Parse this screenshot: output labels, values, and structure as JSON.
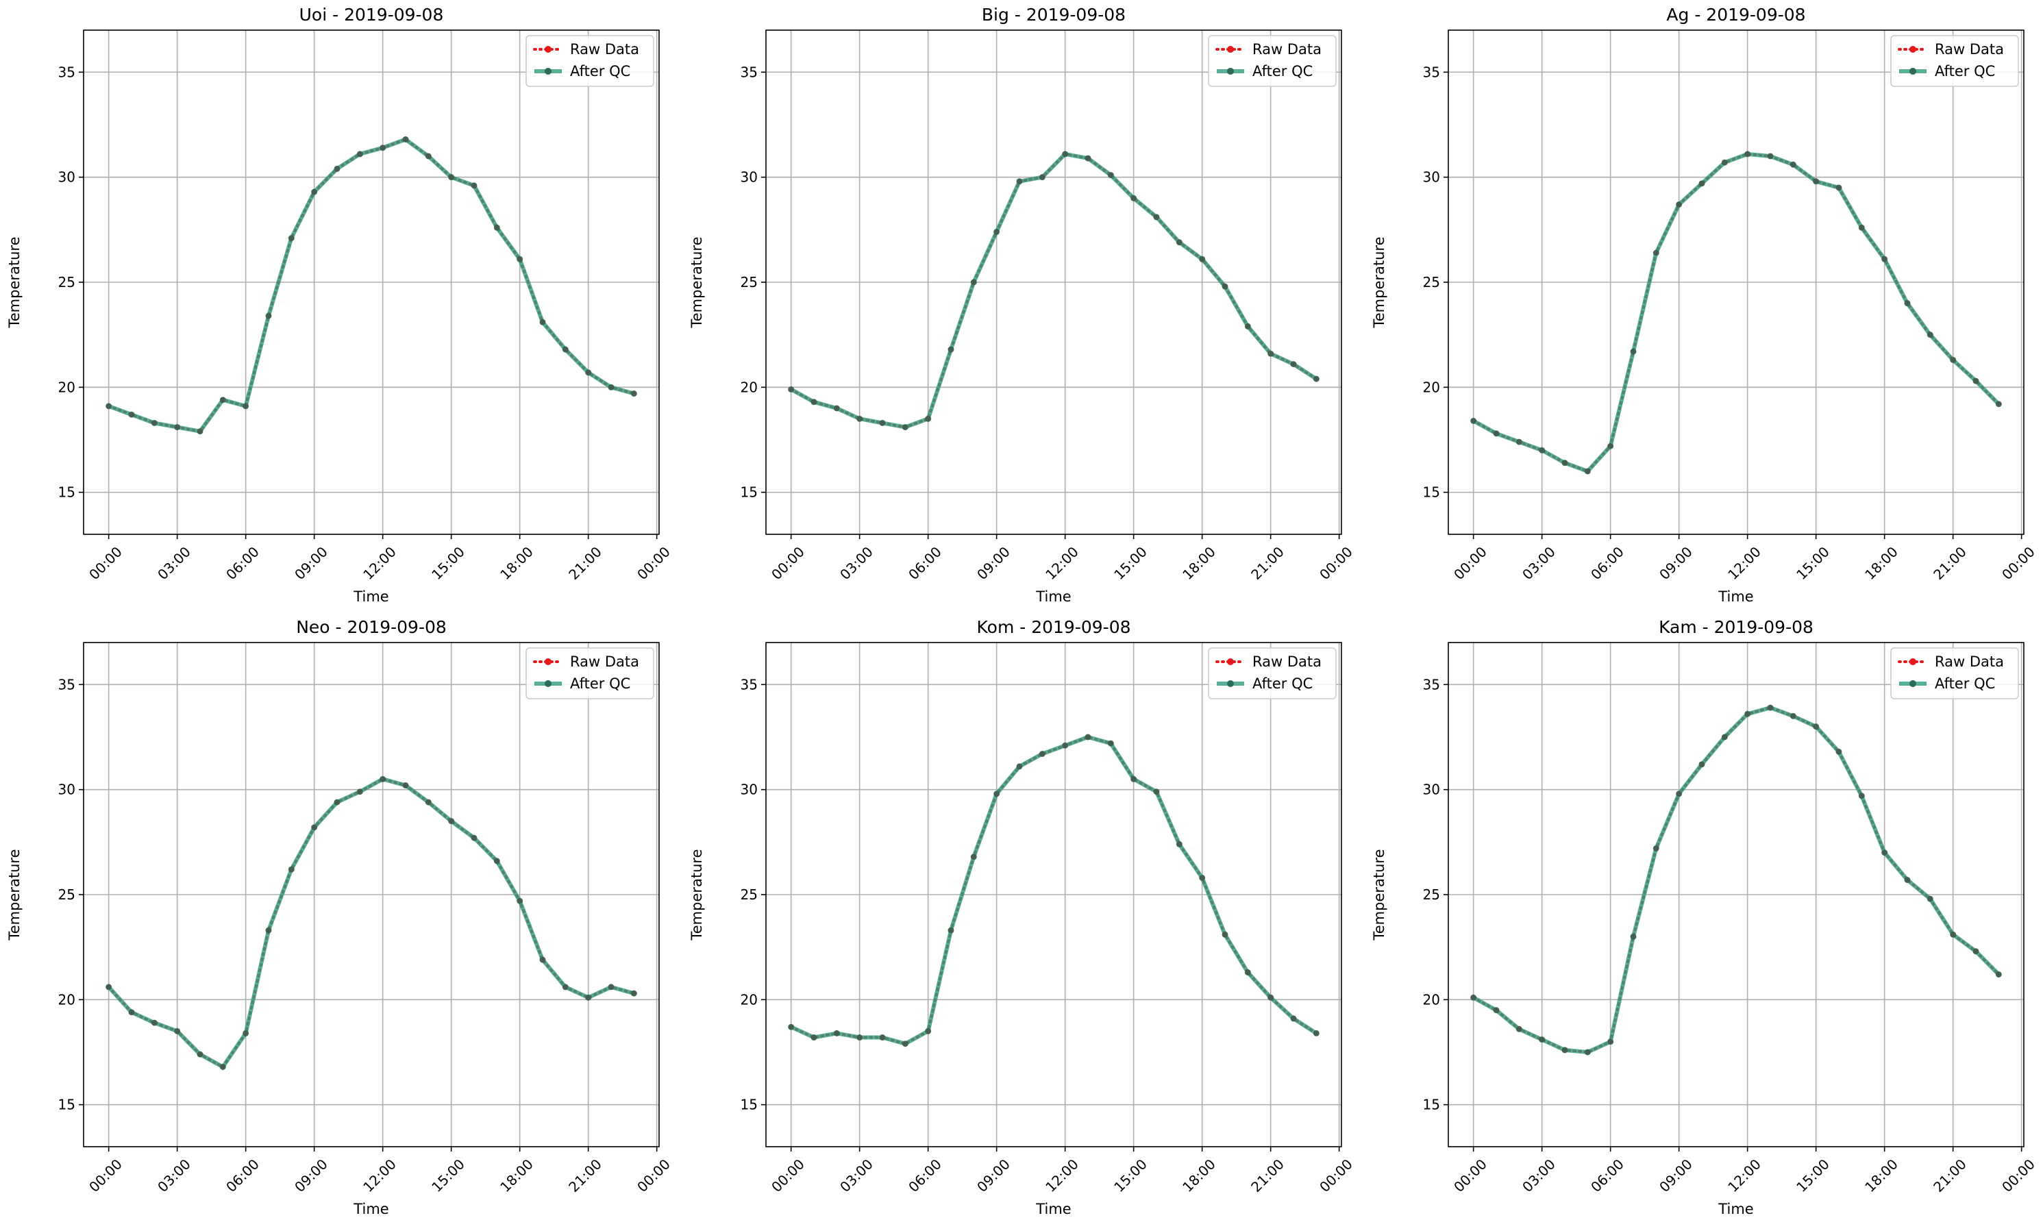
{
  "chart_data": [
    {
      "type": "line",
      "title": "Uoi - 2019-09-08",
      "xlabel": "Time",
      "ylabel": "Temperature",
      "xlim": [
        -1.1,
        24.1
      ],
      "ylim": [
        13,
        37
      ],
      "x_ticks": [
        0,
        3,
        6,
        9,
        12,
        15,
        18,
        21,
        24
      ],
      "x_tick_labels": [
        "00:00",
        "03:00",
        "06:00",
        "09:00",
        "12:00",
        "15:00",
        "18:00",
        "21:00",
        "00:00"
      ],
      "y_ticks": [
        15,
        20,
        25,
        30,
        35
      ],
      "grid": true,
      "legend_position": "top-right",
      "x": [
        0,
        1,
        2,
        3,
        4,
        5,
        6,
        7,
        8,
        9,
        10,
        11,
        12,
        13,
        14,
        15,
        16,
        17,
        18,
        19,
        20,
        21,
        22,
        23
      ],
      "series": [
        {
          "name": "Raw Data",
          "color": "#e41a1c",
          "style": "dotted",
          "values": [
            19.1,
            18.7,
            18.3,
            18.1,
            17.9,
            19.4,
            19.1,
            23.4,
            27.1,
            29.3,
            30.4,
            31.1,
            31.4,
            31.8,
            31.0,
            30.0,
            29.6,
            27.6,
            26.1,
            23.1,
            21.8,
            20.7,
            20.0,
            19.7
          ]
        },
        {
          "name": "After QC",
          "color": "#2e9e7e",
          "style": "solid",
          "values": [
            19.1,
            18.7,
            18.3,
            18.1,
            17.9,
            19.4,
            19.1,
            23.4,
            27.1,
            29.3,
            30.4,
            31.1,
            31.4,
            31.8,
            31.0,
            30.0,
            29.6,
            27.6,
            26.1,
            23.1,
            21.8,
            20.7,
            20.0,
            19.7
          ]
        }
      ]
    },
    {
      "type": "line",
      "title": "Big - 2019-09-08",
      "xlabel": "Time",
      "ylabel": "Temperature",
      "xlim": [
        -1.1,
        24.1
      ],
      "ylim": [
        13,
        37
      ],
      "x_ticks": [
        0,
        3,
        6,
        9,
        12,
        15,
        18,
        21,
        24
      ],
      "x_tick_labels": [
        "00:00",
        "03:00",
        "06:00",
        "09:00",
        "12:00",
        "15:00",
        "18:00",
        "21:00",
        "00:00"
      ],
      "y_ticks": [
        15,
        20,
        25,
        30,
        35
      ],
      "grid": true,
      "legend_position": "top-right",
      "x": [
        0,
        1,
        2,
        3,
        4,
        5,
        6,
        7,
        8,
        9,
        10,
        11,
        12,
        13,
        14,
        15,
        16,
        17,
        18,
        19,
        20,
        21,
        22,
        23
      ],
      "series": [
        {
          "name": "Raw Data",
          "color": "#e41a1c",
          "style": "dotted",
          "values": [
            19.9,
            19.3,
            19.0,
            18.5,
            18.3,
            18.1,
            18.5,
            21.8,
            25.0,
            27.4,
            29.8,
            30.0,
            31.1,
            30.9,
            30.1,
            29.0,
            28.1,
            26.9,
            26.1,
            24.8,
            22.9,
            21.6,
            21.1,
            20.4
          ]
        },
        {
          "name": "After QC",
          "color": "#2e9e7e",
          "style": "solid",
          "values": [
            19.9,
            19.3,
            19.0,
            18.5,
            18.3,
            18.1,
            18.5,
            21.8,
            25.0,
            27.4,
            29.8,
            30.0,
            31.1,
            30.9,
            30.1,
            29.0,
            28.1,
            26.9,
            26.1,
            24.8,
            22.9,
            21.6,
            21.1,
            20.4
          ]
        }
      ]
    },
    {
      "type": "line",
      "title": "Ag - 2019-09-08",
      "xlabel": "Time",
      "ylabel": "Temperature",
      "xlim": [
        -1.1,
        24.1
      ],
      "ylim": [
        13,
        37
      ],
      "x_ticks": [
        0,
        3,
        6,
        9,
        12,
        15,
        18,
        21,
        24
      ],
      "x_tick_labels": [
        "00:00",
        "03:00",
        "06:00",
        "09:00",
        "12:00",
        "15:00",
        "18:00",
        "21:00",
        "00:00"
      ],
      "y_ticks": [
        15,
        20,
        25,
        30,
        35
      ],
      "grid": true,
      "legend_position": "top-right",
      "x": [
        0,
        1,
        2,
        3,
        4,
        5,
        6,
        7,
        8,
        9,
        10,
        11,
        12,
        13,
        14,
        15,
        16,
        17,
        18,
        19,
        20,
        21,
        22,
        23
      ],
      "series": [
        {
          "name": "Raw Data",
          "color": "#e41a1c",
          "style": "dotted",
          "values": [
            18.4,
            17.8,
            17.4,
            17.0,
            16.4,
            16.0,
            17.2,
            21.7,
            26.4,
            28.7,
            29.7,
            30.7,
            31.1,
            31.0,
            30.6,
            29.8,
            29.5,
            27.6,
            26.1,
            24.0,
            22.5,
            21.3,
            20.3,
            19.2
          ]
        },
        {
          "name": "After QC",
          "color": "#2e9e7e",
          "style": "solid",
          "values": [
            18.4,
            17.8,
            17.4,
            17.0,
            16.4,
            16.0,
            17.2,
            21.7,
            26.4,
            28.7,
            29.7,
            30.7,
            31.1,
            31.0,
            30.6,
            29.8,
            29.5,
            27.6,
            26.1,
            24.0,
            22.5,
            21.3,
            20.3,
            19.2
          ]
        }
      ]
    },
    {
      "type": "line",
      "title": "Neo - 2019-09-08",
      "xlabel": "Time",
      "ylabel": "Temperature",
      "xlim": [
        -1.1,
        24.1
      ],
      "ylim": [
        13,
        37
      ],
      "x_ticks": [
        0,
        3,
        6,
        9,
        12,
        15,
        18,
        21,
        24
      ],
      "x_tick_labels": [
        "00:00",
        "03:00",
        "06:00",
        "09:00",
        "12:00",
        "15:00",
        "18:00",
        "21:00",
        "00:00"
      ],
      "y_ticks": [
        15,
        20,
        25,
        30,
        35
      ],
      "grid": true,
      "legend_position": "top-right",
      "x": [
        0,
        1,
        2,
        3,
        4,
        5,
        6,
        7,
        8,
        9,
        10,
        11,
        12,
        13,
        14,
        15,
        16,
        17,
        18,
        19,
        20,
        21,
        22,
        23
      ],
      "series": [
        {
          "name": "Raw Data",
          "color": "#e41a1c",
          "style": "dotted",
          "values": [
            20.6,
            19.4,
            18.9,
            18.5,
            17.4,
            16.8,
            18.4,
            23.3,
            26.2,
            28.2,
            29.4,
            29.9,
            30.5,
            30.2,
            29.4,
            28.5,
            27.7,
            26.6,
            24.7,
            21.9,
            20.6,
            20.1,
            20.6,
            20.3
          ]
        },
        {
          "name": "After QC",
          "color": "#2e9e7e",
          "style": "solid",
          "values": [
            20.6,
            19.4,
            18.9,
            18.5,
            17.4,
            16.8,
            18.4,
            23.3,
            26.2,
            28.2,
            29.4,
            29.9,
            30.5,
            30.2,
            29.4,
            28.5,
            27.7,
            26.6,
            24.7,
            21.9,
            20.6,
            20.1,
            20.6,
            20.3
          ]
        }
      ]
    },
    {
      "type": "line",
      "title": "Kom - 2019-09-08",
      "xlabel": "Time",
      "ylabel": "Temperature",
      "xlim": [
        -1.1,
        24.1
      ],
      "ylim": [
        13,
        37
      ],
      "x_ticks": [
        0,
        3,
        6,
        9,
        12,
        15,
        18,
        21,
        24
      ],
      "x_tick_labels": [
        "00:00",
        "03:00",
        "06:00",
        "09:00",
        "12:00",
        "15:00",
        "18:00",
        "21:00",
        "00:00"
      ],
      "y_ticks": [
        15,
        20,
        25,
        30,
        35
      ],
      "grid": true,
      "legend_position": "top-right",
      "x": [
        0,
        1,
        2,
        3,
        4,
        5,
        6,
        7,
        8,
        9,
        10,
        11,
        12,
        13,
        14,
        15,
        16,
        17,
        18,
        19,
        20,
        21,
        22,
        23
      ],
      "series": [
        {
          "name": "Raw Data",
          "color": "#e41a1c",
          "style": "dotted",
          "values": [
            18.7,
            18.2,
            18.4,
            18.2,
            18.2,
            17.9,
            18.5,
            23.3,
            26.8,
            29.8,
            31.1,
            31.7,
            32.1,
            32.5,
            32.2,
            30.5,
            29.9,
            27.4,
            25.8,
            23.1,
            21.3,
            20.1,
            19.1,
            18.4
          ]
        },
        {
          "name": "After QC",
          "color": "#2e9e7e",
          "style": "solid",
          "values": [
            18.7,
            18.2,
            18.4,
            18.2,
            18.2,
            17.9,
            18.5,
            23.3,
            26.8,
            29.8,
            31.1,
            31.7,
            32.1,
            32.5,
            32.2,
            30.5,
            29.9,
            27.4,
            25.8,
            23.1,
            21.3,
            20.1,
            19.1,
            18.4
          ]
        }
      ]
    },
    {
      "type": "line",
      "title": "Kam - 2019-09-08",
      "xlabel": "Time",
      "ylabel": "Temperature",
      "xlim": [
        -1.1,
        24.1
      ],
      "ylim": [
        13,
        37
      ],
      "x_ticks": [
        0,
        3,
        6,
        9,
        12,
        15,
        18,
        21,
        24
      ],
      "x_tick_labels": [
        "00:00",
        "03:00",
        "06:00",
        "09:00",
        "12:00",
        "15:00",
        "18:00",
        "21:00",
        "00:00"
      ],
      "y_ticks": [
        15,
        20,
        25,
        30,
        35
      ],
      "grid": true,
      "legend_position": "top-right",
      "x": [
        0,
        1,
        2,
        3,
        4,
        5,
        6,
        7,
        8,
        9,
        10,
        11,
        12,
        13,
        14,
        15,
        16,
        17,
        18,
        19,
        20,
        21,
        22,
        23
      ],
      "series": [
        {
          "name": "Raw Data",
          "color": "#e41a1c",
          "style": "dotted",
          "values": [
            20.1,
            19.5,
            18.6,
            18.1,
            17.6,
            17.5,
            18.0,
            23.0,
            27.2,
            29.8,
            31.2,
            32.5,
            33.6,
            33.9,
            33.5,
            33.0,
            31.8,
            29.7,
            27.0,
            25.7,
            24.8,
            23.1,
            22.3,
            21.2
          ]
        },
        {
          "name": "After QC",
          "color": "#2e9e7e",
          "style": "solid",
          "values": [
            20.1,
            19.5,
            18.6,
            18.1,
            17.6,
            17.5,
            18.0,
            23.0,
            27.2,
            29.8,
            31.2,
            32.5,
            33.6,
            33.9,
            33.5,
            33.0,
            31.8,
            29.7,
            27.0,
            25.7,
            24.8,
            23.1,
            22.3,
            21.2
          ]
        }
      ]
    }
  ]
}
